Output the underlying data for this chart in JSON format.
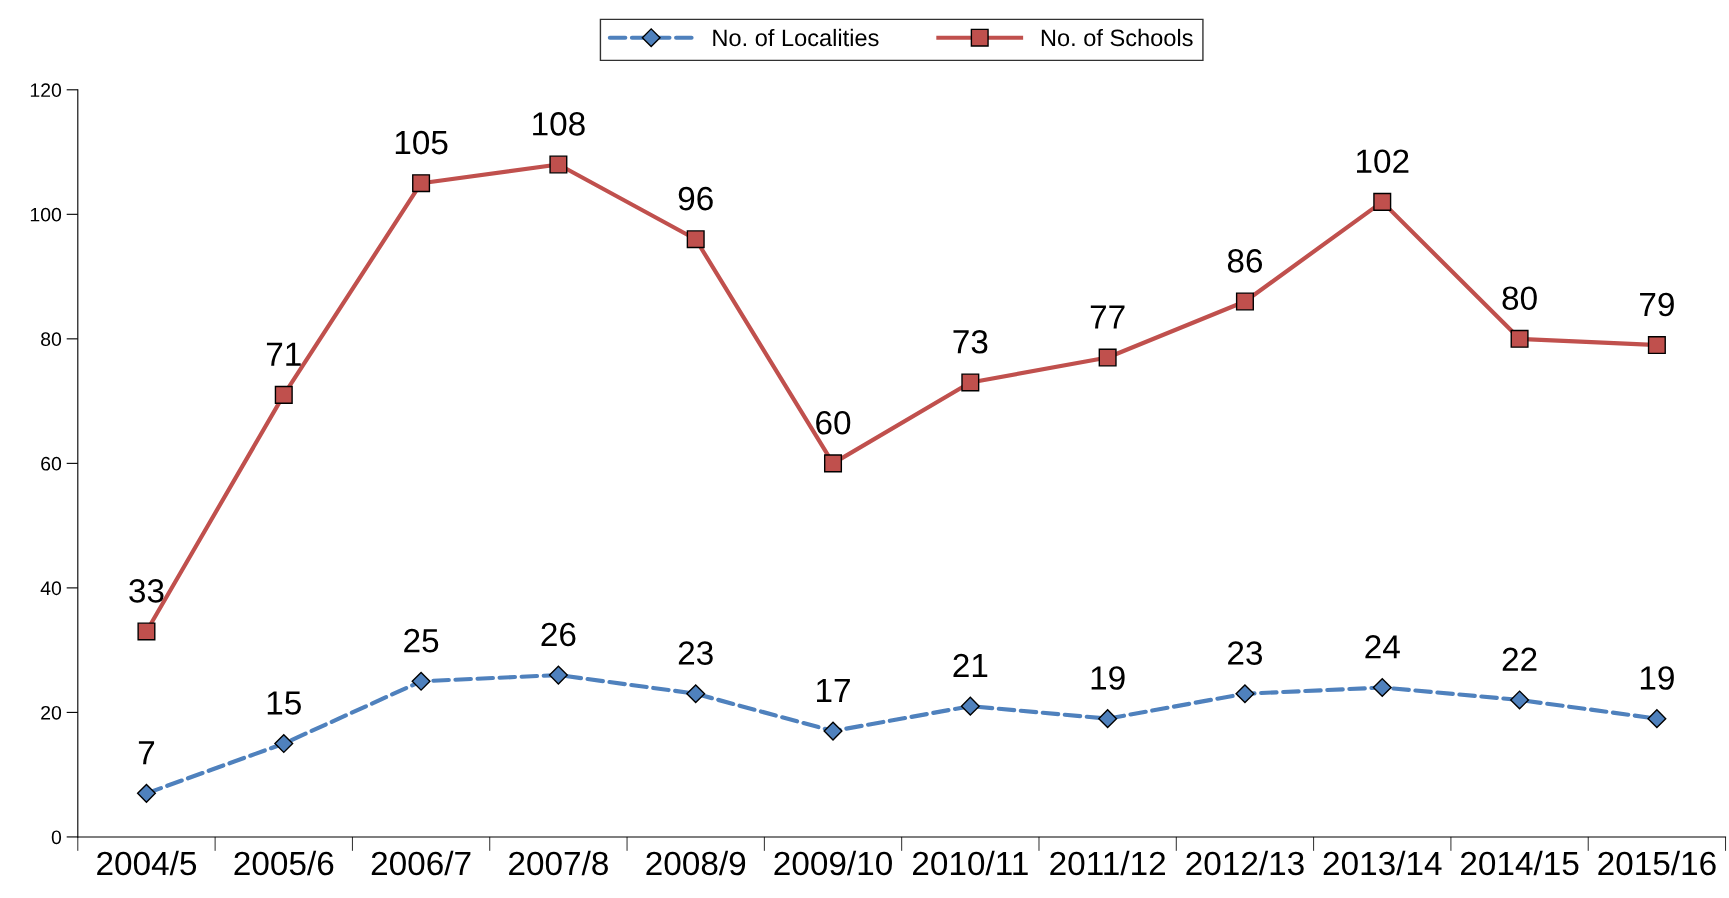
{
  "chart_data": {
    "type": "line",
    "categories": [
      "2004/5",
      "2005/6",
      "2006/7",
      "2007/8",
      "2008/9",
      "2009/10",
      "2010/11",
      "2011/12",
      "2012/13",
      "2013/14",
      "2014/15",
      "2015/16"
    ],
    "series": [
      {
        "name": "No. of Localities",
        "color": "#4f81bd",
        "marker": "diamond",
        "line_style": "dashed",
        "values": [
          7,
          15,
          25,
          26,
          23,
          17,
          21,
          19,
          23,
          24,
          22,
          19
        ]
      },
      {
        "name": "No. of Schools",
        "color": "#c0504d",
        "marker": "square",
        "line_style": "solid",
        "values": [
          33,
          71,
          105,
          108,
          96,
          60,
          73,
          77,
          86,
          102,
          80,
          79
        ]
      }
    ],
    "ylim": [
      0,
      120
    ],
    "yticks": [
      0,
      20,
      40,
      60,
      80,
      100,
      120
    ],
    "data_labels": true,
    "grid": false,
    "legend": "top"
  }
}
